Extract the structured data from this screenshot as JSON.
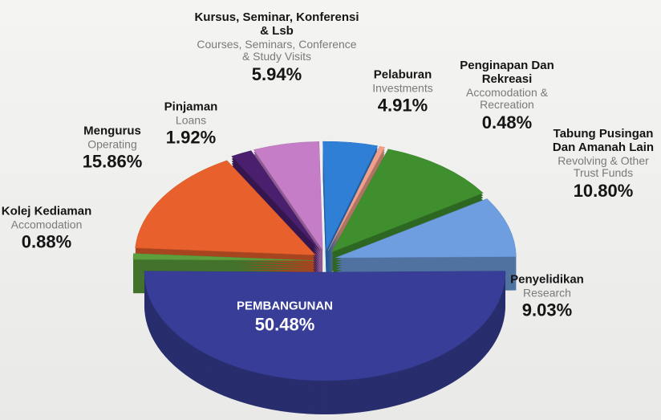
{
  "chart_data": {
    "type": "pie",
    "categories": [
      "PEMBANGUNAN",
      "Kolej Kediaman",
      "Mengurus",
      "Pinjaman",
      "Kursus, Seminar, Konferensi & Lsb",
      "Pelaburan",
      "Penginapan Dan Rekreasi",
      "Tabung Pusingan Dan Amanah Lain",
      "Penyelidikan"
    ],
    "categories_en": [
      null,
      "Accomodation",
      "Operating",
      "Loans",
      "Courses, Seminars, Conference & Study Visits",
      "Investments",
      "Accomodation & Recreation",
      "Revolving & Other Trust Funds",
      "Research"
    ],
    "values": [
      50.48,
      0.88,
      15.86,
      1.92,
      5.94,
      4.91,
      0.48,
      10.8,
      9.03
    ],
    "value_labels": [
      "50.48%",
      "0.88%",
      "15.86%",
      "1.92%",
      "5.94%",
      "4.91%",
      "0.48%",
      "10.80%",
      "9.03%"
    ],
    "colors": [
      "#383e98",
      "#5c9f3c",
      "#e8602c",
      "#4a1f6e",
      "#c47dc6",
      "#2f7fd6",
      "#f0a08a",
      "#3f8f2f",
      "#6f9ee0"
    ]
  }
}
